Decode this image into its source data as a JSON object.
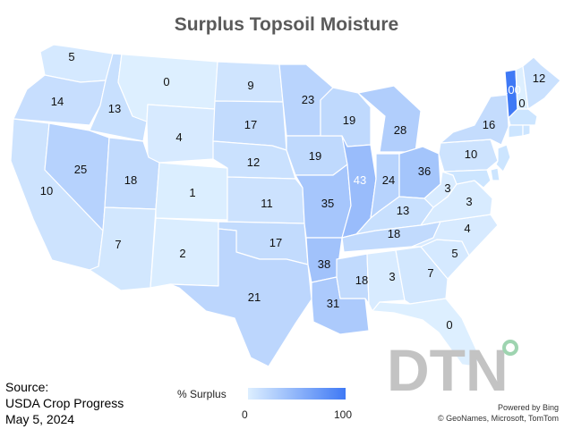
{
  "title": "Surplus Topsoil Moisture",
  "source": {
    "line1": "Source:",
    "line2": "USDA Crop Progress",
    "line3": "May 5, 2024"
  },
  "legend": {
    "label": "% Surplus",
    "min_label": "0",
    "max_label": "100",
    "color_low": "#ddefff",
    "color_high": "#3f79f5"
  },
  "attribution": {
    "line1": "Powered by Bing",
    "line2": "© GeoNames, Microsoft, TomTom"
  },
  "logo_text": "DTN",
  "colors": {
    "state_fill_base": "#cce5ff",
    "state_border": "#ffffff",
    "logo_gray": "#c3c3c3",
    "logo_dot": "#9ed4b0"
  },
  "states": [
    {
      "id": "WA",
      "value": 5
    },
    {
      "id": "OR",
      "value": 14
    },
    {
      "id": "CA",
      "value": 10
    },
    {
      "id": "ID",
      "value": 13
    },
    {
      "id": "NV",
      "value": 25
    },
    {
      "id": "MT",
      "value": 0
    },
    {
      "id": "WY",
      "value": 4
    },
    {
      "id": "UT",
      "value": 18
    },
    {
      "id": "AZ",
      "value": 7
    },
    {
      "id": "CO",
      "value": 1
    },
    {
      "id": "NM",
      "value": 2
    },
    {
      "id": "ND",
      "value": 9
    },
    {
      "id": "SD",
      "value": 17
    },
    {
      "id": "NE",
      "value": 12
    },
    {
      "id": "KS",
      "value": 11
    },
    {
      "id": "OK",
      "value": 17
    },
    {
      "id": "TX",
      "value": 21
    },
    {
      "id": "MN",
      "value": 23
    },
    {
      "id": "IA",
      "value": 19
    },
    {
      "id": "MO",
      "value": 35
    },
    {
      "id": "AR",
      "value": 38
    },
    {
      "id": "LA",
      "value": 31
    },
    {
      "id": "WI",
      "value": 19
    },
    {
      "id": "IL",
      "value": 43
    },
    {
      "id": "MI",
      "value": 28
    },
    {
      "id": "IN",
      "value": 24
    },
    {
      "id": "OH",
      "value": 36
    },
    {
      "id": "KY",
      "value": 13
    },
    {
      "id": "TN",
      "value": 18
    },
    {
      "id": "MS",
      "value": 18
    },
    {
      "id": "AL",
      "value": 3
    },
    {
      "id": "GA",
      "value": 7
    },
    {
      "id": "FL",
      "value": 0
    },
    {
      "id": "SC",
      "value": 5
    },
    {
      "id": "NC",
      "value": 4
    },
    {
      "id": "VA",
      "value": 3
    },
    {
      "id": "WV",
      "value": 3
    },
    {
      "id": "PA",
      "value": 10
    },
    {
      "id": "NY",
      "value": 16
    },
    {
      "id": "VT",
      "value": 100
    },
    {
      "id": "NH",
      "value": 0
    },
    {
      "id": "ME",
      "value": 12
    },
    {
      "id": "NJ",
      "value": null
    },
    {
      "id": "MD",
      "value": null
    },
    {
      "id": "DE",
      "value": null
    },
    {
      "id": "CT",
      "value": null
    },
    {
      "id": "MA",
      "value": null
    },
    {
      "id": "RI",
      "value": null
    }
  ]
}
